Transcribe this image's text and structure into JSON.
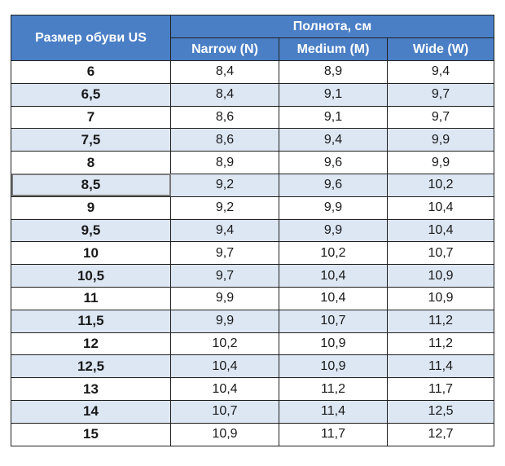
{
  "table": {
    "header": {
      "size_label": "Размер обуви US",
      "group_label": "Полнота, см",
      "columns": [
        "Narrow (N)",
        "Medium (M)",
        "Wide (W)"
      ]
    },
    "rows": [
      {
        "size": "6",
        "narrow": "8,4",
        "medium": "8,9",
        "wide": "9,4"
      },
      {
        "size": "6,5",
        "narrow": "8,4",
        "medium": "9,1",
        "wide": "9,7"
      },
      {
        "size": "7",
        "narrow": "8,6",
        "medium": "9,1",
        "wide": "9,7"
      },
      {
        "size": "7,5",
        "narrow": "8,6",
        "medium": "9,4",
        "wide": "9,9"
      },
      {
        "size": "8",
        "narrow": "8,9",
        "medium": "9,6",
        "wide": "9,9"
      },
      {
        "size": "8,5",
        "narrow": "9,2",
        "medium": "9,6",
        "wide": "10,2"
      },
      {
        "size": "9",
        "narrow": "9,2",
        "medium": "9,9",
        "wide": "10,4"
      },
      {
        "size": "9,5",
        "narrow": "9,4",
        "medium": "9,9",
        "wide": "10,4"
      },
      {
        "size": "10",
        "narrow": "9,7",
        "medium": "10,2",
        "wide": "10,7"
      },
      {
        "size": "10,5",
        "narrow": "9,7",
        "medium": "10,4",
        "wide": "10,9"
      },
      {
        "size": "11",
        "narrow": "9,9",
        "medium": "10,4",
        "wide": "10,9"
      },
      {
        "size": "11,5",
        "narrow": "9,9",
        "medium": "10,7",
        "wide": "11,2"
      },
      {
        "size": "12",
        "narrow": "10,2",
        "medium": "10,9",
        "wide": "11,2"
      },
      {
        "size": "12,5",
        "narrow": "10,4",
        "medium": "10,9",
        "wide": "11,4"
      },
      {
        "size": "13",
        "narrow": "10,4",
        "medium": "11,2",
        "wide": "11,7"
      },
      {
        "size": "14",
        "narrow": "10,7",
        "medium": "11,4",
        "wide": "12,5"
      },
      {
        "size": "15",
        "narrow": "10,9",
        "medium": "11,7",
        "wide": "12,7"
      }
    ],
    "selected_row": 5,
    "colors": {
      "header_bg": "#4a7fc6",
      "header_text": "#ffffff",
      "stripe": "#dde6f3",
      "border": "#1f1f1f"
    }
  }
}
